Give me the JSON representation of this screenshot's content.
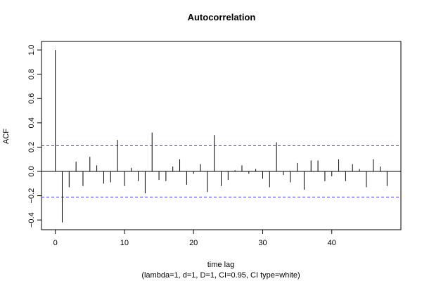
{
  "chart_data": {
    "type": "bar",
    "title": "Autocorrelation",
    "xlabel": "time lag",
    "subtitle": "(lambda=1, d=1, D=1, CI=0.95, CI type=white)",
    "ylabel": "ACF",
    "xlim": [
      -2,
      50
    ],
    "ylim": [
      -0.48,
      1.07
    ],
    "x_ticks": [
      0,
      10,
      20,
      30,
      40
    ],
    "y_ticks": [
      -0.4,
      -0.2,
      0.0,
      0.2,
      0.4,
      0.6,
      0.8,
      1.0
    ],
    "x_tick_labels": [
      "0",
      "10",
      "20",
      "30",
      "40"
    ],
    "y_tick_labels": [
      "−0.4",
      "−0.2",
      "0.0",
      "0.2",
      "0.4",
      "0.6",
      "0.8",
      "1.0"
    ],
    "confidence_bound": 0.212,
    "lags": [
      0,
      1,
      2,
      3,
      4,
      5,
      6,
      7,
      8,
      9,
      10,
      11,
      12,
      13,
      14,
      15,
      16,
      17,
      18,
      19,
      20,
      21,
      22,
      23,
      24,
      25,
      26,
      27,
      28,
      29,
      30,
      31,
      32,
      33,
      34,
      35,
      36,
      37,
      38,
      39,
      40,
      41,
      42,
      43,
      44,
      45,
      46,
      47,
      48
    ],
    "acf": [
      1.0,
      -0.42,
      -0.13,
      0.08,
      -0.12,
      0.12,
      0.05,
      -0.1,
      -0.09,
      0.26,
      -0.12,
      0.03,
      -0.08,
      -0.18,
      0.32,
      -0.07,
      -0.08,
      0.04,
      0.1,
      -0.11,
      -0.02,
      0.06,
      -0.17,
      0.3,
      -0.12,
      -0.07,
      0.01,
      0.05,
      -0.02,
      0.02,
      -0.06,
      -0.13,
      0.24,
      -0.03,
      -0.09,
      0.07,
      -0.15,
      0.09,
      0.09,
      -0.08,
      -0.04,
      0.1,
      -0.08,
      0.06,
      0.02,
      -0.13,
      0.1,
      0.04,
      -0.12
    ],
    "colors": {
      "bars": "#000000",
      "ci_line": "#3b3bff",
      "zero_line": "#000000",
      "axes": "#000000"
    },
    "grid": false
  }
}
